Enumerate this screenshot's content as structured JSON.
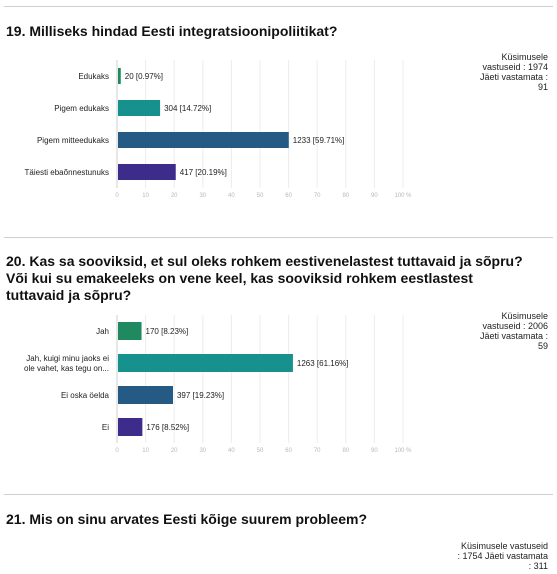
{
  "questions": [
    {
      "title": "19. Milliseks hindad Eesti integratsioonipoliitikat?",
      "stats": [
        "Küsimusele",
        "vastuseid : 1974",
        "Jäeti vastamata :",
        "91"
      ]
    },
    {
      "title_lines": [
        "20. Kas sa sooviksid, et sul oleks rohkem eestivenelastest tuttavaid ja sõpru?",
        "Või kui su emakeeleks on vene keel, kas sooviksid rohkem eestlastest",
        "tuttavaid ja sõpru?"
      ],
      "stats": [
        "Küsimusele",
        "vastuseid : 2006",
        "Jäeti vastamata :",
        "59"
      ]
    },
    {
      "title": "21. Mis on sinu arvates Eesti kõige suurem probleem?",
      "stats": [
        "Küsimusele vastuseid",
        ": 1754 Jäeti vastamata",
        ": 311"
      ]
    }
  ],
  "chart_data": [
    {
      "type": "bar",
      "orientation": "horizontal",
      "categories": [
        [
          "Edukaks"
        ],
        [
          "Pigem edukaks"
        ],
        [
          "Pigem mitteedukaks"
        ],
        [
          "Täiesti ebaõnnestunuks"
        ]
      ],
      "values": [
        0.97,
        14.72,
        59.71,
        20.19
      ],
      "labels": [
        "20 [0.97%]",
        "304 [14.72%]",
        "1233 [59.71%]",
        "417 [20.19%]"
      ],
      "colors": [
        "#1f8a5f",
        "#16918d",
        "#255a85",
        "#3d2c8c"
      ],
      "xlim": [
        0,
        100
      ],
      "xticks": [
        "0",
        "10",
        "20",
        "30",
        "40",
        "50",
        "60",
        "70",
        "80",
        "90",
        "100 %"
      ]
    },
    {
      "type": "bar",
      "orientation": "horizontal",
      "categories": [
        [
          "Jah"
        ],
        [
          "Jah, kuigi minu jaoks ei",
          "ole vahet, kas tegu on..."
        ],
        [
          "Ei oska öelda"
        ],
        [
          "Ei"
        ]
      ],
      "values": [
        8.23,
        61.16,
        19.23,
        8.52
      ],
      "labels": [
        "170 [8.23%]",
        "1263 [61.16%]",
        "397 [19.23%]",
        "176 [8.52%]"
      ],
      "colors": [
        "#1f8a5f",
        "#16918d",
        "#255a85",
        "#3d2c8c"
      ],
      "xlim": [
        0,
        100
      ],
      "xticks": [
        "0",
        "10",
        "20",
        "30",
        "40",
        "50",
        "60",
        "70",
        "80",
        "90",
        "100 %"
      ]
    }
  ]
}
